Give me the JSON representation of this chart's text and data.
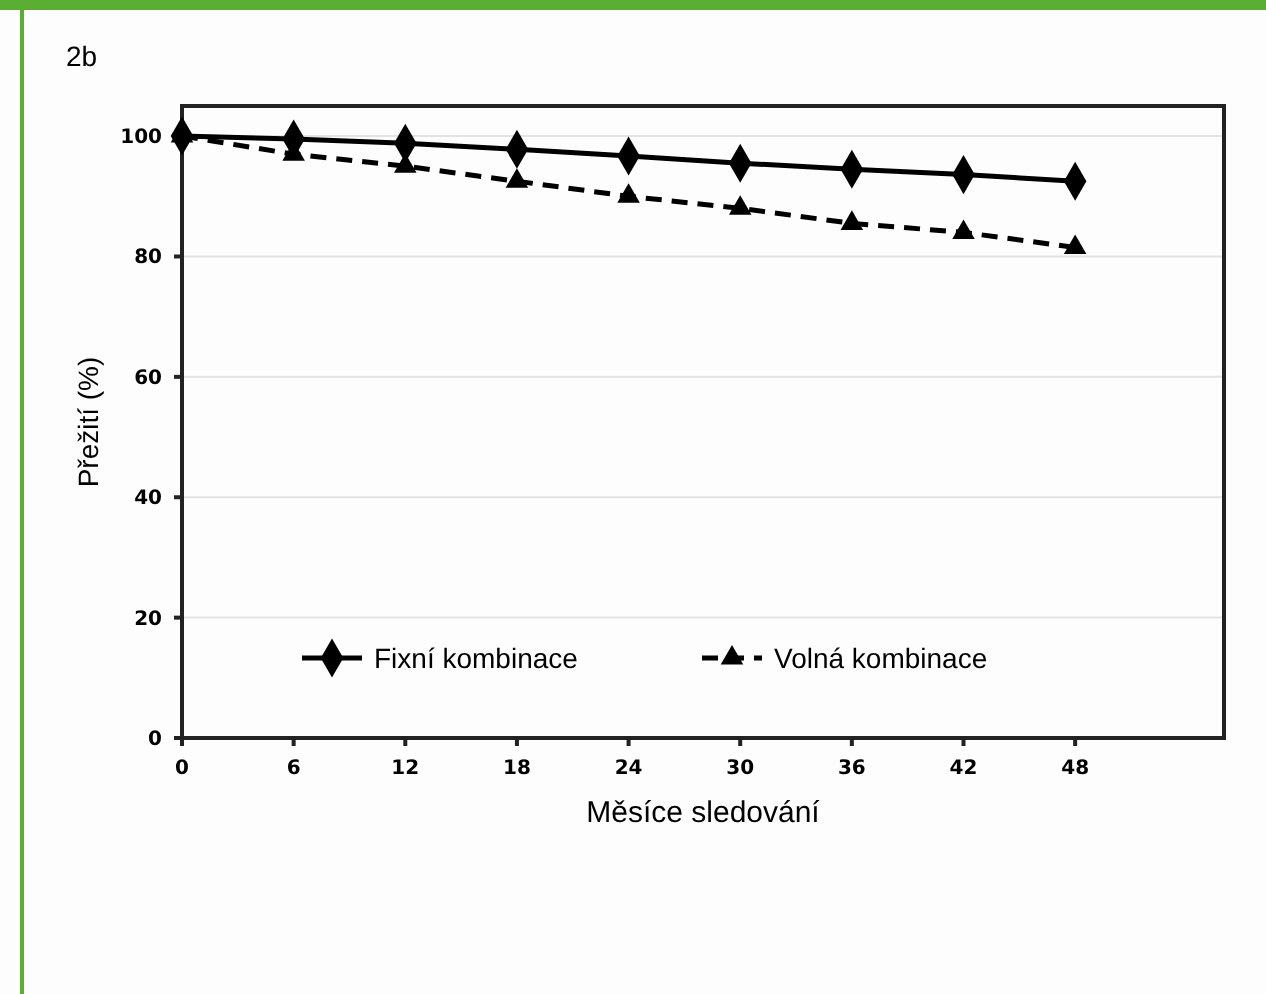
{
  "chart_data": {
    "type": "line",
    "title": "2b",
    "xlabel": "Měsíce sledování",
    "ylabel": "Přežití (%)",
    "x": [
      0,
      6,
      12,
      18,
      24,
      30,
      36,
      42,
      48
    ],
    "series": [
      {
        "name": "Fixní kombinace",
        "color": "#000000",
        "values": [
          100,
          99.5,
          98.8,
          97.8,
          96.7,
          95.5,
          94.5,
          93.6,
          92.5
        ],
        "marker": "diamond",
        "line_style": "solid"
      },
      {
        "name": "Volná kombinace",
        "color": "#000000",
        "values": [
          100,
          97,
          95,
          92.5,
          90,
          88,
          85.5,
          84,
          81.5
        ],
        "marker": "triangle",
        "line_style": "dashed"
      }
    ],
    "xlim": [
      0,
      56
    ],
    "xticks": [
      0,
      6,
      12,
      18,
      24,
      30,
      36,
      42,
      48
    ],
    "ylim": [
      0,
      105
    ],
    "yticks": [
      0,
      20,
      40,
      60,
      80,
      100
    ],
    "grid": "y",
    "legend": "bottom"
  }
}
